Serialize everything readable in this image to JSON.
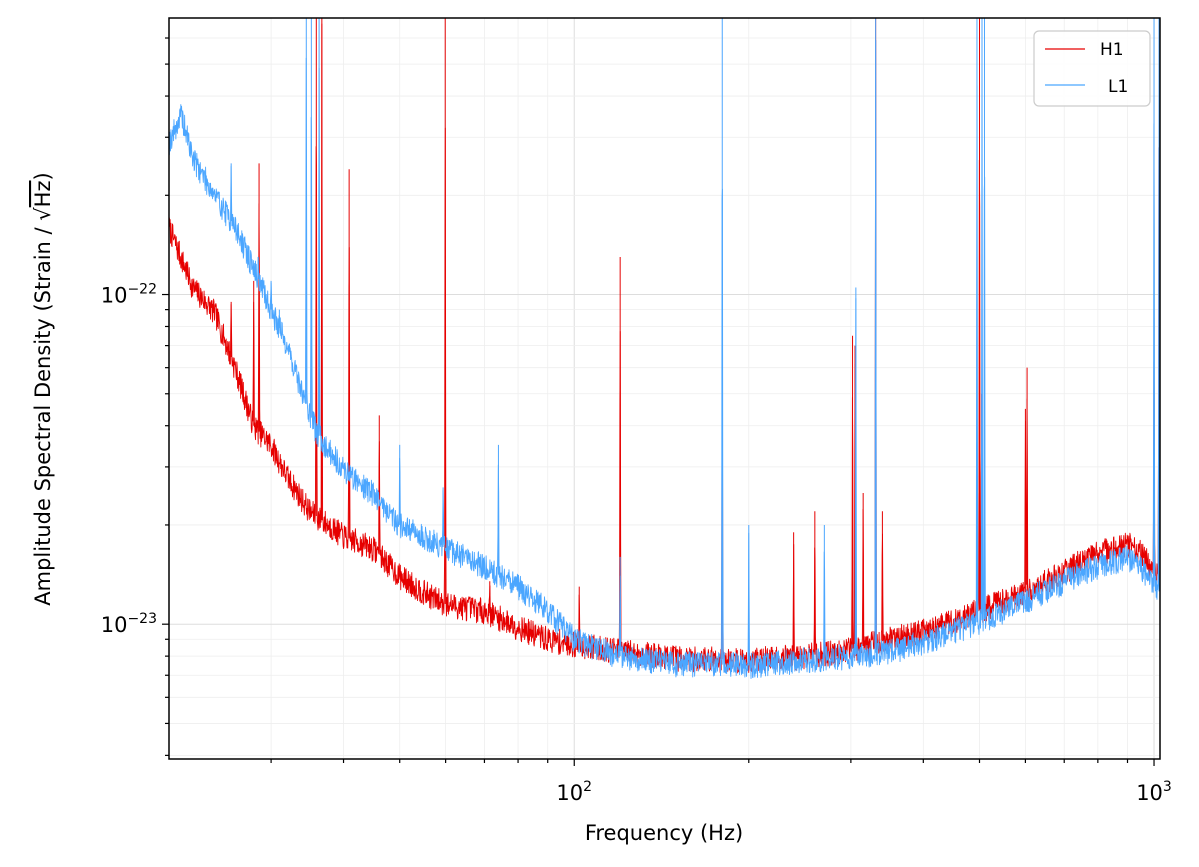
{
  "chart_data": {
    "type": "line",
    "title": "",
    "xlabel": "Frequency (Hz)",
    "ylabel_prefix": "Amplitude Spectral Density (Strain / ",
    "ylabel_radical": "√",
    "ylabel_radicand": "Hz",
    "ylabel_suffix": ")",
    "xscale": "log",
    "yscale": "log",
    "xlim": [
      20,
      1024
    ],
    "ylim": [
      3.9e-24,
      6.9e-22
    ],
    "grid": true,
    "legend_position": "top-right",
    "x_ticks": [
      {
        "value": 100,
        "base": "10",
        "exp": "2"
      },
      {
        "value": 1000,
        "base": "10",
        "exp": "3"
      }
    ],
    "y_ticks": [
      {
        "value": 1e-23,
        "base": "10",
        "exp": "−23"
      },
      {
        "value": 1e-22,
        "base": "10",
        "exp": "−22"
      }
    ],
    "series": [
      {
        "name": "H1",
        "color": "#e60000",
        "baseline": [
          [
            20,
            1.6e-22
          ],
          [
            22,
            1.05e-22
          ],
          [
            24,
            8.8e-23
          ],
          [
            26,
            6e-23
          ],
          [
            28,
            4e-23
          ],
          [
            30,
            3.5e-23
          ],
          [
            32,
            2.8e-23
          ],
          [
            35,
            2.2e-23
          ],
          [
            40,
            1.85e-23
          ],
          [
            45,
            1.7e-23
          ],
          [
            50,
            1.4e-23
          ],
          [
            55,
            1.25e-23
          ],
          [
            60,
            1.15e-23
          ],
          [
            70,
            1.1e-23
          ],
          [
            80,
            9.8e-24
          ],
          [
            90,
            9e-24
          ],
          [
            100,
            8.7e-24
          ],
          [
            120,
            8.3e-24
          ],
          [
            150,
            7.9e-24
          ],
          [
            200,
            7.8e-24
          ],
          [
            250,
            8e-24
          ],
          [
            300,
            8.4e-24
          ],
          [
            350,
            9e-24
          ],
          [
            400,
            9.5e-24
          ],
          [
            500,
            1.1e-23
          ],
          [
            600,
            1.25e-23
          ],
          [
            700,
            1.45e-23
          ],
          [
            800,
            1.65e-23
          ],
          [
            900,
            1.75e-23
          ],
          [
            950,
            1.65e-23
          ],
          [
            1000,
            1.45e-23
          ],
          [
            1024,
            1.35e-23
          ]
        ],
        "spikes": [
          [
            25.6,
            9.5e-23
          ],
          [
            28,
            1.1e-22
          ],
          [
            28.6,
            2.5e-22
          ],
          [
            35.9,
            6.9e-22
          ],
          [
            36.7,
            6.9e-22
          ],
          [
            40.9,
            2.4e-22
          ],
          [
            46.1,
            4.3e-23
          ],
          [
            59.9,
            6.9e-22
          ],
          [
            71.5,
            1.35e-23
          ],
          [
            102,
            1.3e-23
          ],
          [
            120,
            1.3e-22
          ],
          [
            180,
            8.5e-23
          ],
          [
            239,
            1.9e-23
          ],
          [
            260,
            2.2e-23
          ],
          [
            302,
            7.5e-23
          ],
          [
            305,
            7e-23
          ],
          [
            315,
            2.5e-23
          ],
          [
            331,
            6.9e-22
          ],
          [
            340,
            2.2e-23
          ],
          [
            500,
            6.9e-22
          ],
          [
            504,
            5e-23
          ],
          [
            600,
            4.5e-23
          ],
          [
            604,
            6e-23
          ],
          [
            1000,
            8.5e-23
          ],
          [
            1020,
            6.9e-22
          ]
        ]
      },
      {
        "name": "L1",
        "color": "#4ba6ff",
        "baseline": [
          [
            20,
            2.9e-22
          ],
          [
            21,
            3.5e-22
          ],
          [
            22,
            2.6e-22
          ],
          [
            24,
            2e-22
          ],
          [
            26,
            1.6e-22
          ],
          [
            28,
            1.2e-22
          ],
          [
            30,
            9e-23
          ],
          [
            32,
            7e-23
          ],
          [
            34,
            5e-23
          ],
          [
            36,
            3.8e-23
          ],
          [
            40,
            2.95e-23
          ],
          [
            45,
            2.5e-23
          ],
          [
            50,
            2e-23
          ],
          [
            60,
            1.7e-23
          ],
          [
            70,
            1.5e-23
          ],
          [
            80,
            1.3e-23
          ],
          [
            90,
            1.1e-23
          ],
          [
            100,
            9e-24
          ],
          [
            120,
            8e-24
          ],
          [
            150,
            7.6e-24
          ],
          [
            200,
            7.5e-24
          ],
          [
            250,
            7.8e-24
          ],
          [
            300,
            8e-24
          ],
          [
            350,
            8.3e-24
          ],
          [
            400,
            8.8e-24
          ],
          [
            500,
            1.02e-23
          ],
          [
            600,
            1.18e-23
          ],
          [
            700,
            1.35e-23
          ],
          [
            800,
            1.5e-23
          ],
          [
            900,
            1.6e-23
          ],
          [
            950,
            1.5e-23
          ],
          [
            1000,
            1.3e-23
          ],
          [
            1024,
            1.25e-23
          ]
        ],
        "spikes": [
          [
            25.6,
            2.5e-22
          ],
          [
            28.5,
            1.3e-22
          ],
          [
            30,
            1.1e-22
          ],
          [
            31,
            9e-23
          ],
          [
            34.5,
            6.9e-22
          ],
          [
            35.2,
            6.9e-22
          ],
          [
            36.3,
            6.9e-22
          ],
          [
            50,
            3.5e-23
          ],
          [
            59.4,
            2.6e-23
          ],
          [
            74,
            3.5e-23
          ],
          [
            120,
            1.6e-23
          ],
          [
            180,
            6.9e-22
          ],
          [
            200,
            2e-23
          ],
          [
            270,
            2e-23
          ],
          [
            306,
            1.05e-22
          ],
          [
            331,
            6.9e-22
          ],
          [
            495,
            6.9e-22
          ],
          [
            505,
            6.9e-22
          ],
          [
            510,
            6.9e-22
          ],
          [
            1000,
            6.9e-22
          ],
          [
            1020,
            6.9e-22
          ]
        ]
      }
    ]
  }
}
